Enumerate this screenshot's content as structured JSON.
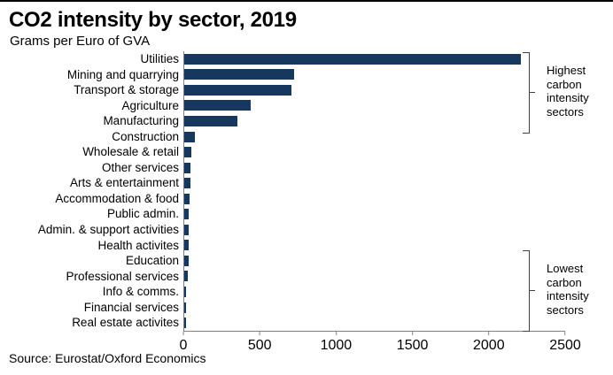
{
  "header": {
    "title": "CO2 intensity by sector, 2019",
    "subtitle": "Grams per Euro of GVA"
  },
  "chart_data": {
    "type": "bar",
    "orientation": "horizontal",
    "title": "CO2 intensity by sector, 2019",
    "subtitle": "Grams per Euro of GVA",
    "categories": [
      "Utilities",
      "Mining and quarrying",
      "Transport & storage",
      "Agriculture",
      "Manufacturing",
      "Construction",
      "Wholesale & retail",
      "Other services",
      "Arts & entertainment",
      "Accommodation & food",
      "Public admin.",
      "Admin. & support activities",
      "Health activites",
      "Education",
      "Professional services",
      "Info & comms.",
      "Financial services",
      "Real estate activites"
    ],
    "values": [
      2210,
      720,
      705,
      435,
      350,
      70,
      48,
      42,
      40,
      36,
      30,
      30,
      27,
      27,
      22,
      12,
      10,
      9
    ],
    "xlim": [
      0,
      2500
    ],
    "x_ticks": [
      0,
      500,
      1000,
      1500,
      2000,
      2500
    ],
    "bar_color": "#16375E",
    "axis_color": "#808080",
    "grid": false,
    "legend": "none",
    "annotations": [
      {
        "text": "Highest\ncarbon\nintensity\nsectors"
      },
      {
        "text": "Lowest\ncarbon\nintensity\nsectors"
      }
    ]
  },
  "footer": {
    "source": "Source: Eurostat/Oxford Economics"
  }
}
